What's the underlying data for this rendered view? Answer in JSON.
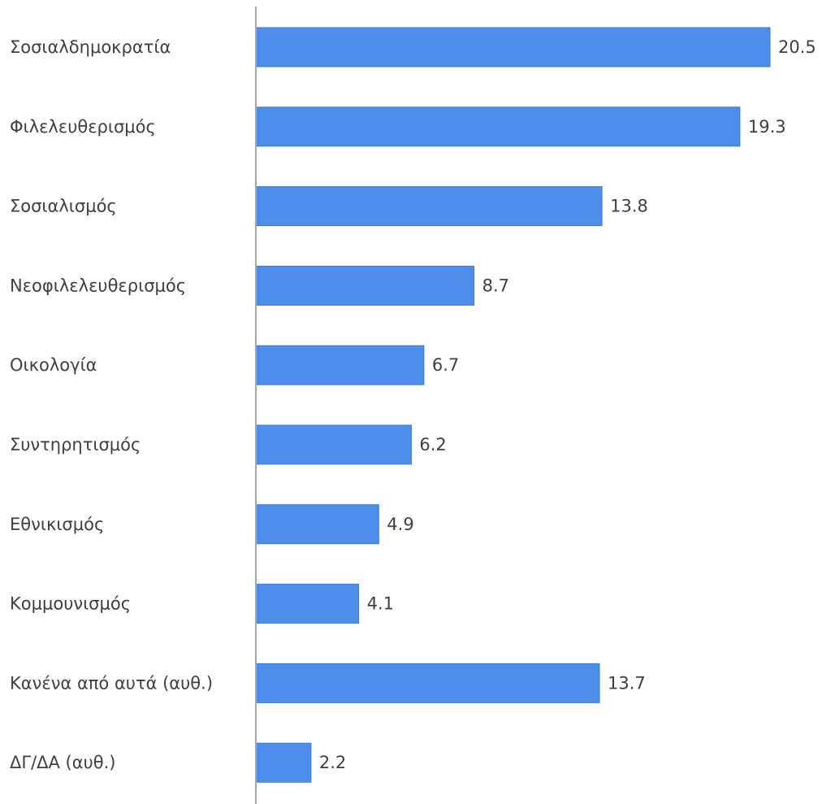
{
  "chart_data": {
    "type": "bar",
    "orientation": "horizontal",
    "categories": [
      "Σοσιαλδημοκρατία",
      "Φιλελευθερισμός",
      "Σοσιαλισμός",
      "Νεοφιλελευθερισμός",
      "Οικολογία",
      "Συντηρητισμός",
      "Εθνικισμός",
      "Κομμουνισμός",
      "Κανένα από αυτά (αυθ.)",
      "ΔΓ/ΔΑ (αυθ.)"
    ],
    "values": [
      20.5,
      19.3,
      13.8,
      8.7,
      6.7,
      6.2,
      4.9,
      4.1,
      13.7,
      2.2
    ],
    "value_labels": [
      "20.5",
      "19.3",
      "13.8",
      "8.7",
      "6.7",
      "6.2",
      "4.9",
      "4.1",
      "13.7",
      "2.2"
    ],
    "title": "",
    "xlabel": "",
    "ylabel": "",
    "xlim": [
      0,
      20.5
    ],
    "grid": false,
    "legend": "none",
    "colors": {
      "bar_fill": "#4E8EEB",
      "bar_stroke": "#3A78D4",
      "axis_line": "#A6A6A6",
      "label_text": "#404040"
    }
  }
}
